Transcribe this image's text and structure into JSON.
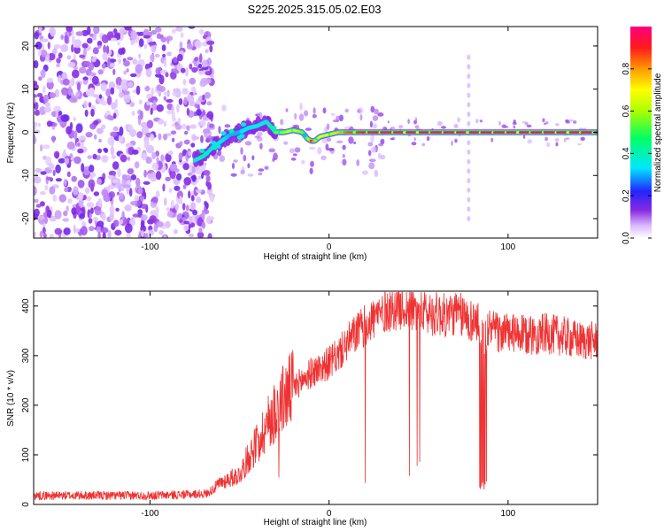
{
  "title": "S225.2025.315.05.02.E03",
  "chart_data": [
    {
      "type": "heatmap",
      "name": "spectrogram",
      "title": "S225.2025.315.05.02.E03",
      "xlabel": "Height of straight line (km)",
      "ylabel": "Frequency (Hz)",
      "xlim": [
        -165,
        150
      ],
      "ylim": [
        -24.5,
        24.5
      ],
      "xticks": [
        -100,
        0,
        100
      ],
      "yticks": [
        -20,
        -10,
        0,
        10,
        20
      ],
      "colorbar": {
        "label": "Normalized spectral amplitude",
        "range": [
          0,
          1
        ],
        "ticks": [
          "0.0",
          "0.2",
          "0.4",
          "0.6",
          "0.8"
        ],
        "tick_values": [
          0.0,
          0.2,
          0.4,
          0.6,
          0.8
        ]
      },
      "noise_region_x": [
        -165,
        -70
      ],
      "signal_track": {
        "x": [
          -75,
          -70,
          -65,
          -60,
          -55,
          -50,
          -45,
          -40,
          -35,
          -30,
          -25,
          -20,
          -15,
          -12,
          -10,
          -8,
          -5,
          0,
          5,
          10,
          20,
          40,
          60,
          80,
          100,
          120,
          150
        ],
        "frequency": [
          -6.5,
          -5.5,
          -3.5,
          -2,
          -0.5,
          0,
          1,
          1.5,
          2.5,
          0,
          0,
          0.5,
          0,
          -1.5,
          -2,
          -2,
          -1,
          -0.5,
          0,
          0,
          0,
          0,
          0,
          0,
          0,
          0,
          0
        ],
        "amplitude": [
          0.35,
          0.4,
          0.35,
          0.35,
          0.3,
          0.3,
          0.35,
          0.35,
          0.35,
          0.55,
          0.6,
          0.7,
          0.55,
          0.55,
          0.9,
          0.75,
          0.7,
          0.7,
          0.75,
          0.85,
          0.9,
          0.92,
          0.92,
          0.92,
          0.92,
          0.92,
          0.92
        ]
      },
      "vertical_artifact_x": 78
    },
    {
      "type": "line",
      "name": "snr",
      "xlabel": "Height of straight line (km)",
      "ylabel": "SNR (10 * v/v)",
      "xlim": [
        -165,
        150
      ],
      "ylim": [
        0,
        430
      ],
      "xticks": [
        -100,
        0,
        100
      ],
      "yticks": [
        0,
        100,
        200,
        300,
        400
      ],
      "color": "#ef3232",
      "series": [
        {
          "name": "SNR",
          "x": [
            -165,
            -140,
            -120,
            -100,
            -80,
            -68,
            -60,
            -50,
            -45,
            -40,
            -35,
            -30,
            -25,
            -20,
            -15,
            -10,
            -5,
            0,
            5,
            10,
            15,
            20,
            25,
            30,
            35,
            40,
            45,
            50,
            55,
            60,
            65,
            70,
            75,
            80,
            85,
            88,
            90,
            95,
            100,
            110,
            120,
            130,
            140,
            150
          ],
          "values": [
            18,
            18,
            18,
            18,
            20,
            22,
            45,
            60,
            95,
            125,
            160,
            190,
            215,
            235,
            250,
            265,
            275,
            285,
            300,
            325,
            345,
            360,
            375,
            390,
            395,
            400,
            395,
            390,
            385,
            385,
            380,
            385,
            380,
            370,
            360,
            350,
            355,
            345,
            345,
            340,
            345,
            340,
            330,
            330
          ]
        }
      ]
    }
  ]
}
